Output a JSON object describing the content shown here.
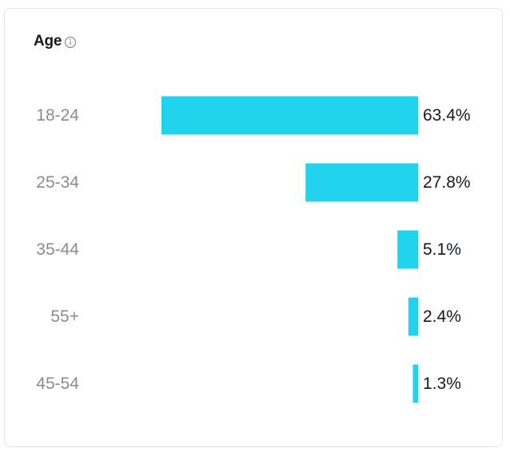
{
  "header": {
    "title": "Age",
    "info_icon": "info-icon"
  },
  "colors": {
    "bar": "#22d3ee",
    "category_text": "#8a8b91",
    "value_text": "#161823"
  },
  "chart_data": {
    "type": "bar",
    "orientation": "horizontal",
    "title": "Age",
    "categories": [
      "18-24",
      "25-34",
      "35-44",
      "55+",
      "45-54"
    ],
    "values": [
      63.4,
      27.8,
      5.1,
      2.4,
      1.3
    ],
    "value_labels": [
      "63.4%",
      "27.8%",
      "5.1%",
      "2.4%",
      "1.3%"
    ],
    "unit": "%",
    "xlim": [
      0,
      63.4
    ],
    "grid": false,
    "legend": "none"
  }
}
